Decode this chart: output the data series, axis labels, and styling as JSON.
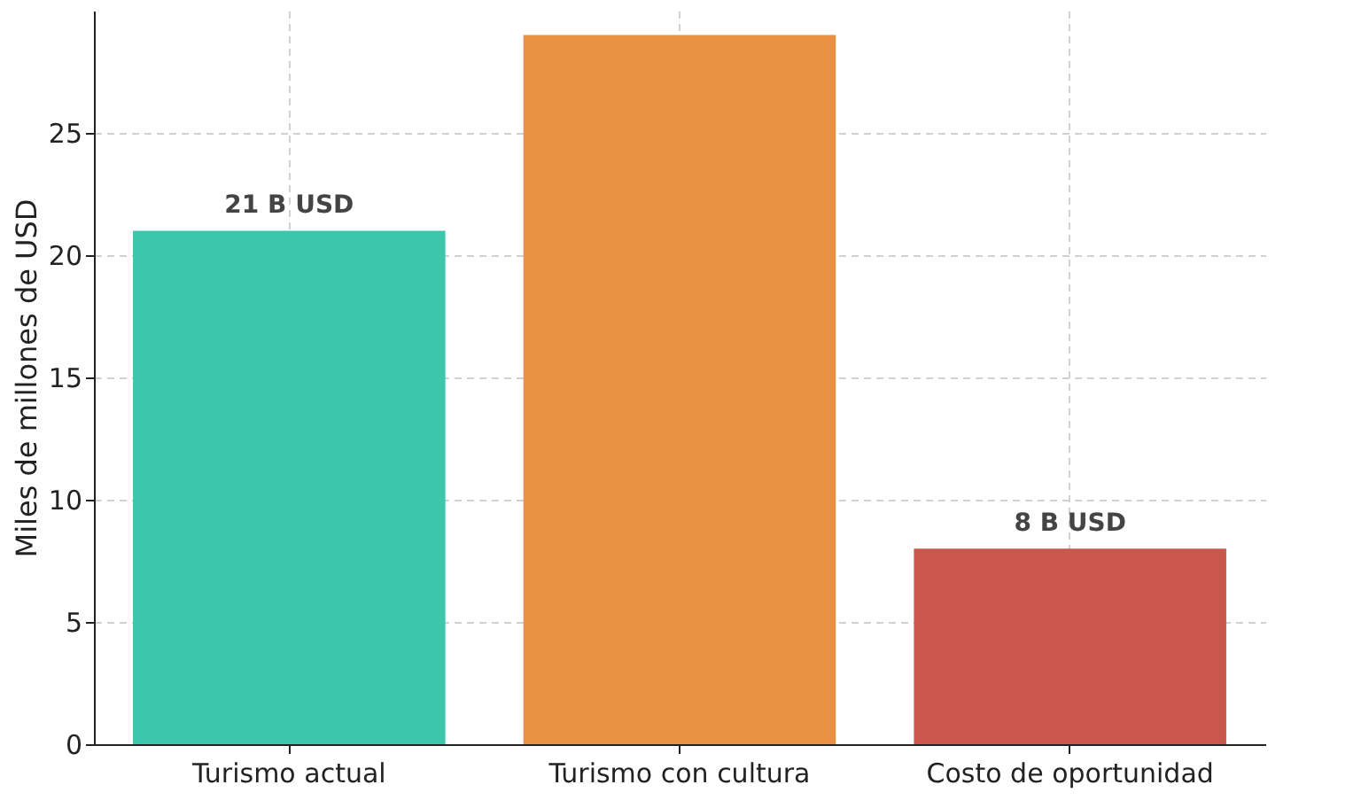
{
  "chart_data": {
    "type": "bar",
    "ylabel": "Miles de millones de USD",
    "categories": [
      "Turismo actual",
      "Turismo con cultura",
      "Costo de oportunidad"
    ],
    "values": [
      21,
      29,
      8
    ],
    "colors": [
      "#3cc6ab",
      "#e89143",
      "#c9574b"
    ],
    "value_labels": [
      "21 B USD",
      null,
      "8 B USD"
    ],
    "ylim": [
      0,
      30
    ],
    "yticks": [
      0,
      5,
      10,
      15,
      20,
      25
    ],
    "grid": true
  }
}
